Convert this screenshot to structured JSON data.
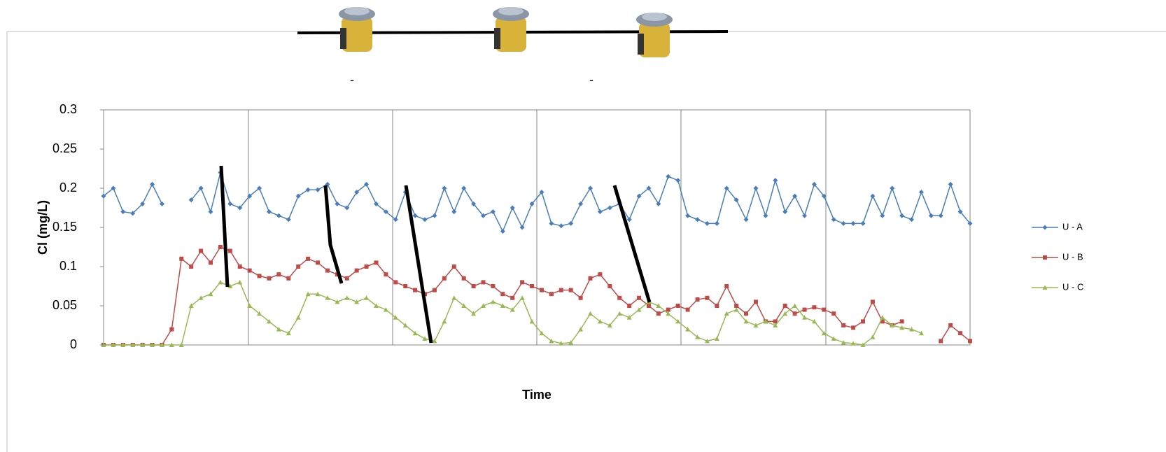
{
  "chart_data": {
    "type": "line",
    "y_label": "Cl (mg/L)",
    "x_label": "Time",
    "annotations": [
      "-",
      "-"
    ],
    "ylim": [
      0,
      0.3
    ],
    "yticks": [
      0,
      0.05,
      0.1,
      0.15,
      0.2,
      0.25,
      0.3
    ],
    "categories": [
      null,
      null,
      null,
      null,
      null,
      null,
      null,
      null,
      null,
      null,
      null,
      null,
      null,
      null,
      null,
      null,
      null,
      null,
      null,
      null,
      null,
      null,
      null,
      null,
      null,
      null,
      null,
      null,
      null,
      null,
      null,
      null,
      null,
      null,
      null,
      null,
      null,
      null,
      null,
      null,
      null,
      null,
      null,
      null,
      null,
      null,
      null,
      null,
      null,
      null,
      null,
      null,
      null,
      null,
      null,
      null,
      null,
      null,
      null,
      null,
      null,
      null,
      null,
      null,
      null,
      null,
      null,
      null,
      null,
      null,
      null,
      null,
      null,
      null,
      null,
      null,
      null,
      null,
      null,
      null,
      null,
      null,
      null,
      null,
      null,
      null,
      null,
      null,
      null,
      null
    ],
    "series": [
      {
        "name": "U - A",
        "color": "#4a7ebb",
        "marker": "diamond",
        "values": [
          0.19,
          0.2,
          0.17,
          0.168,
          0.18,
          0.205,
          0.18,
          null,
          null,
          0.185,
          0.2,
          0.17,
          0.22,
          0.18,
          0.175,
          0.19,
          0.2,
          0.17,
          0.165,
          0.16,
          0.19,
          0.198,
          0.198,
          0.205,
          0.18,
          0.175,
          0.195,
          0.205,
          0.18,
          0.17,
          0.16,
          0.195,
          0.165,
          0.16,
          0.165,
          0.2,
          0.17,
          0.2,
          0.18,
          0.165,
          0.17,
          0.145,
          0.175,
          0.15,
          0.18,
          0.195,
          0.155,
          0.152,
          0.155,
          0.18,
          0.2,
          0.17,
          0.175,
          0.18,
          0.16,
          0.19,
          0.2,
          0.18,
          0.215,
          0.21,
          0.165,
          0.16,
          0.155,
          0.155,
          0.2,
          0.185,
          0.16,
          0.2,
          0.165,
          0.21,
          0.17,
          0.19,
          0.165,
          0.205,
          0.19,
          0.16,
          0.155,
          0.155,
          0.155,
          0.19,
          0.165,
          0.2,
          0.165,
          0.16,
          0.195,
          0.165,
          0.165,
          0.205,
          0.17,
          0.155
        ]
      },
      {
        "name": "U - B",
        "color": "#be4b48",
        "marker": "square",
        "values": [
          0,
          0,
          0,
          0,
          0,
          0,
          0,
          0.02,
          0.11,
          0.1,
          0.12,
          0.105,
          0.125,
          0.12,
          0.1,
          0.095,
          0.088,
          0.085,
          0.09,
          0.085,
          0.1,
          0.11,
          0.105,
          0.095,
          0.09,
          0.085,
          0.095,
          0.1,
          0.105,
          0.09,
          0.08,
          0.075,
          0.07,
          0.065,
          0.07,
          0.085,
          0.1,
          0.085,
          0.075,
          0.08,
          0.075,
          0.065,
          0.06,
          0.08,
          0.075,
          0.07,
          0.065,
          0.07,
          0.07,
          0.06,
          0.085,
          0.09,
          0.075,
          0.06,
          0.05,
          0.06,
          0.05,
          0.04,
          0.045,
          0.05,
          0.045,
          0.058,
          0.06,
          0.05,
          0.075,
          0.05,
          0.04,
          0.055,
          0.03,
          0.03,
          0.05,
          0.04,
          0.045,
          0.048,
          0.045,
          0.04,
          0.025,
          0.022,
          0.03,
          0.055,
          0.03,
          0.025,
          0.03,
          null,
          null,
          null,
          0.005,
          0.025,
          0.015,
          0.005
        ]
      },
      {
        "name": "U - C",
        "color": "#98b954",
        "marker": "triangle",
        "values": [
          0,
          0,
          0,
          0,
          0,
          0,
          0,
          0,
          0,
          0.05,
          0.06,
          0.065,
          0.08,
          0.075,
          0.08,
          0.05,
          0.04,
          0.03,
          0.02,
          0.015,
          0.035,
          0.065,
          0.065,
          0.06,
          0.055,
          0.06,
          0.055,
          0.06,
          0.05,
          0.045,
          0.035,
          0.025,
          0.015,
          0.008,
          0.005,
          0.03,
          0.06,
          0.05,
          0.04,
          0.05,
          0.055,
          0.05,
          0.045,
          0.06,
          0.03,
          0.015,
          0.005,
          0.002,
          0.003,
          0.02,
          0.04,
          0.03,
          0.025,
          0.04,
          0.035,
          0.045,
          0.055,
          0.05,
          0.04,
          0.03,
          0.02,
          0.01,
          0.005,
          0.008,
          0.04,
          0.045,
          0.03,
          0.025,
          0.03,
          0.025,
          0.04,
          0.05,
          0.035,
          0.03,
          0.015,
          0.008,
          0.003,
          0.002,
          0,
          0.01,
          0.035,
          0.025,
          0.022,
          0.02,
          0.015,
          null,
          null,
          null,
          null,
          null
        ]
      }
    ]
  }
}
